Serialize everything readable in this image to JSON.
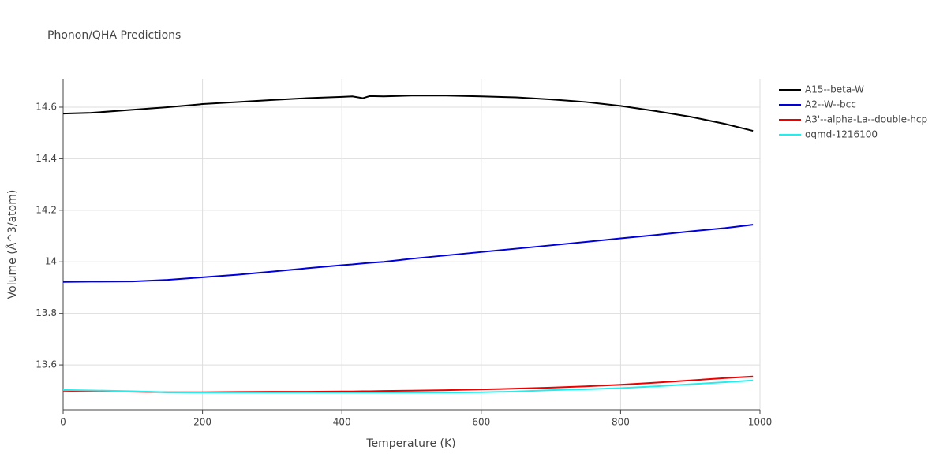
{
  "chart_data": {
    "type": "line",
    "title": "Phonon/QHA Predictions",
    "x_label": "Temperature (K)",
    "y_label": "Volume (Å^3/atom)",
    "x": [
      0,
      40,
      100,
      150,
      200,
      250,
      300,
      350,
      400,
      415,
      430,
      440,
      460,
      500,
      550,
      600,
      650,
      700,
      750,
      800,
      850,
      900,
      950,
      990
    ],
    "series": [
      {
        "name": "A15--beta-W",
        "color": "#000000",
        "values": [
          14.575,
          14.578,
          14.59,
          14.6,
          14.612,
          14.62,
          14.628,
          14.635,
          14.64,
          14.642,
          14.635,
          14.643,
          14.642,
          14.645,
          14.645,
          14.642,
          14.638,
          14.63,
          14.62,
          14.605,
          14.585,
          14.563,
          14.535,
          14.508
        ]
      },
      {
        "name": "A2--W--bcc",
        "color": "#0000dd",
        "values": [
          13.922,
          13.923,
          13.924,
          13.93,
          13.94,
          13.95,
          13.962,
          13.975,
          13.987,
          13.99,
          13.994,
          13.996,
          14.0,
          14.012,
          14.025,
          14.038,
          14.051,
          14.064,
          14.077,
          14.091,
          14.104,
          14.118,
          14.131,
          14.144
        ]
      },
      {
        "name": "A3'--alpha-La--double-hcp",
        "color": "#ee0000",
        "values": [
          13.5,
          13.498,
          13.496,
          13.494,
          13.494,
          13.495,
          13.496,
          13.496,
          13.497,
          13.497,
          13.498,
          13.498,
          13.499,
          13.5,
          13.502,
          13.505,
          13.508,
          13.512,
          13.517,
          13.523,
          13.531,
          13.54,
          13.549,
          13.555
        ]
      },
      {
        "name": "oqmd-1216100",
        "color": "#22eeee",
        "values": [
          13.503,
          13.501,
          13.498,
          13.494,
          13.493,
          13.493,
          13.493,
          13.493,
          13.493,
          13.493,
          13.493,
          13.493,
          13.493,
          13.493,
          13.493,
          13.494,
          13.497,
          13.502,
          13.506,
          13.51,
          13.517,
          13.525,
          13.533,
          13.54
        ]
      }
    ],
    "xlim": [
      0,
      1000
    ],
    "xticks": [
      0,
      200,
      400,
      600,
      800,
      1000
    ],
    "ylim": [
      13.426,
      14.71
    ],
    "yticks": [
      13.6,
      13.8,
      14,
      14.2,
      14.4,
      14.6
    ],
    "grid": true,
    "legend": "right"
  }
}
